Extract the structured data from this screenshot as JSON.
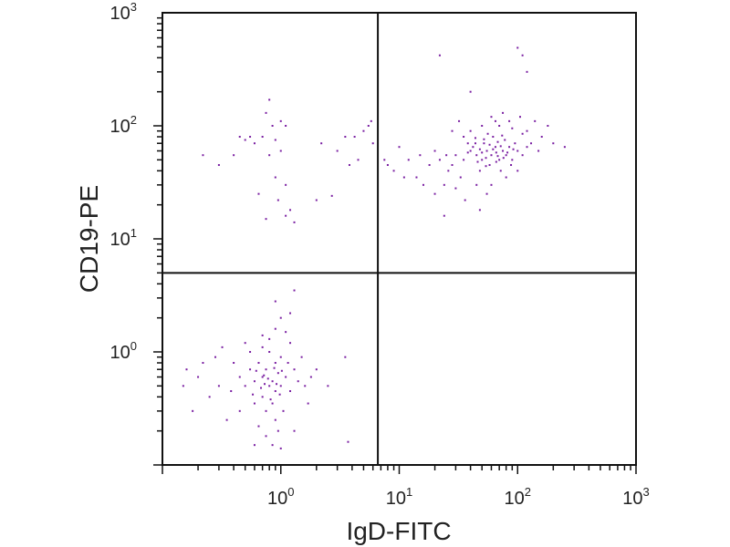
{
  "chart_data": {
    "type": "scatter",
    "title": "",
    "xlabel": "IgD-FITC",
    "ylabel": "CD19-PE",
    "x_scale": "log",
    "y_scale": "log",
    "xlim": [
      0.1,
      1000
    ],
    "ylim": [
      0.1,
      1000
    ],
    "x_ticks": [
      {
        "value": 1,
        "base": "10",
        "exp": "0"
      },
      {
        "value": 10,
        "base": "10",
        "exp": "1"
      },
      {
        "value": 100,
        "base": "10",
        "exp": "2"
      },
      {
        "value": 1000,
        "base": "10",
        "exp": "3"
      }
    ],
    "y_ticks": [
      {
        "value": 1,
        "base": "10",
        "exp": "0"
      },
      {
        "value": 10,
        "base": "10",
        "exp": "1"
      },
      {
        "value": 100,
        "base": "10",
        "exp": "2"
      },
      {
        "value": 1000,
        "base": "10",
        "exp": "3"
      }
    ],
    "quadrant_gate": {
      "x": 6.6,
      "y": 5.0
    },
    "grid": false,
    "legend": "none",
    "point_color": "#7a1fa2",
    "line_color": "#111111",
    "series": [
      {
        "points": [
          [
            0.85,
            0.55
          ],
          [
            0.7,
            0.6
          ],
          [
            0.9,
            0.45
          ],
          [
            0.75,
            0.7
          ],
          [
            0.8,
            0.5
          ],
          [
            0.95,
            0.65
          ],
          [
            0.6,
            0.55
          ],
          [
            1.0,
            0.5
          ],
          [
            0.65,
            0.8
          ],
          [
            0.9,
            0.8
          ],
          [
            0.7,
            0.4
          ],
          [
            0.85,
            0.35
          ],
          [
            1.1,
            0.6
          ],
          [
            0.55,
            0.7
          ],
          [
            0.75,
            0.3
          ],
          [
            1.0,
            0.9
          ],
          [
            0.8,
            1.0
          ],
          [
            0.5,
            0.5
          ],
          [
            1.2,
            0.45
          ],
          [
            0.6,
            0.35
          ],
          [
            0.9,
            0.25
          ],
          [
            1.3,
            0.7
          ],
          [
            0.45,
            0.6
          ],
          [
            0.7,
            1.1
          ],
          [
            1.05,
            0.3
          ],
          [
            0.95,
            0.2
          ],
          [
            0.4,
            0.8
          ],
          [
            1.4,
            0.55
          ],
          [
            0.3,
            0.5
          ],
          [
            0.8,
            1.3
          ],
          [
            1.6,
            0.5
          ],
          [
            0.65,
            0.22
          ],
          [
            0.2,
            0.6
          ],
          [
            0.25,
            0.4
          ],
          [
            0.15,
            0.5
          ],
          [
            0.18,
            0.3
          ],
          [
            0.22,
            0.8
          ],
          [
            0.35,
            0.25
          ],
          [
            1.5,
            0.9
          ],
          [
            1.8,
            0.6
          ],
          [
            1.2,
            1.2
          ],
          [
            0.55,
            1.0
          ],
          [
            0.85,
            0.15
          ],
          [
            1.0,
            0.14
          ],
          [
            0.75,
            0.18
          ],
          [
            1.3,
            0.2
          ],
          [
            0.6,
            0.15
          ],
          [
            2.0,
            0.7
          ],
          [
            0.28,
            0.9
          ],
          [
            0.16,
            0.7
          ],
          [
            0.9,
            1.6
          ],
          [
            1.1,
            1.5
          ],
          [
            0.7,
            1.4
          ],
          [
            1.2,
            2.2
          ],
          [
            0.5,
            1.2
          ],
          [
            0.32,
            1.1
          ],
          [
            2.5,
            0.5
          ],
          [
            1.7,
            0.35
          ],
          [
            0.45,
            0.3
          ],
          [
            0.38,
            0.45
          ],
          [
            1.15,
            0.8
          ],
          [
            0.72,
            0.62
          ],
          [
            0.88,
            0.72
          ],
          [
            0.98,
            0.42
          ],
          [
            0.68,
            0.48
          ],
          [
            0.78,
            0.58
          ],
          [
            0.82,
            0.38
          ],
          [
            0.92,
            0.52
          ],
          [
            1.02,
            0.68
          ],
          [
            0.62,
            0.68
          ],
          [
            0.58,
            0.42
          ],
          [
            0.73,
            0.52
          ],
          [
            1.3,
            3.5
          ],
          [
            1.0,
            2.0
          ],
          [
            3.7,
            0.16
          ],
          [
            3.5,
            0.9
          ],
          [
            0.9,
            2.8
          ]
        ]
      },
      {
        "points": [
          [
            0.8,
            170
          ],
          [
            0.75,
            130
          ],
          [
            0.85,
            100
          ],
          [
            1.0,
            110
          ],
          [
            1.1,
            100
          ],
          [
            0.9,
            75
          ],
          [
            0.7,
            80
          ],
          [
            0.55,
            80
          ],
          [
            0.5,
            75
          ],
          [
            0.45,
            80
          ],
          [
            0.6,
            70
          ],
          [
            1.0,
            60
          ],
          [
            0.8,
            55
          ],
          [
            0.4,
            55
          ],
          [
            0.3,
            45
          ],
          [
            0.22,
            55
          ],
          [
            0.9,
            35
          ],
          [
            1.1,
            30
          ],
          [
            1.2,
            18
          ],
          [
            0.75,
            15
          ],
          [
            1.3,
            14
          ],
          [
            1.1,
            16
          ],
          [
            0.95,
            22
          ],
          [
            0.65,
            25
          ],
          [
            2.0,
            22
          ],
          [
            2.7,
            24
          ],
          [
            3.5,
            80
          ],
          [
            4.2,
            80
          ],
          [
            5.0,
            90
          ],
          [
            5.5,
            100
          ],
          [
            3.0,
            60
          ],
          [
            2.2,
            70
          ],
          [
            6.0,
            70
          ],
          [
            3.8,
            45
          ],
          [
            4.5,
            50
          ],
          [
            5.8,
            110
          ]
        ]
      },
      {
        "points": [
          [
            60,
            55
          ],
          [
            55,
            60
          ],
          [
            70,
            50
          ],
          [
            50,
            50
          ],
          [
            65,
            65
          ],
          [
            45,
            55
          ],
          [
            75,
            60
          ],
          [
            40,
            60
          ],
          [
            80,
            55
          ],
          [
            58,
            45
          ],
          [
            52,
            70
          ],
          [
            68,
            72
          ],
          [
            85,
            65
          ],
          [
            35,
            50
          ],
          [
            90,
            50
          ],
          [
            48,
            40
          ],
          [
            62,
            80
          ],
          [
            100,
            60
          ],
          [
            30,
            55
          ],
          [
            95,
            70
          ],
          [
            110,
            55
          ],
          [
            42,
            65
          ],
          [
            72,
            40
          ],
          [
            56,
            85
          ],
          [
            78,
            75
          ],
          [
            66,
            58
          ],
          [
            54,
            52
          ],
          [
            46,
            48
          ],
          [
            88,
            45
          ],
          [
            38,
            70
          ],
          [
            120,
            65
          ],
          [
            130,
            70
          ],
          [
            150,
            60
          ],
          [
            28,
            45
          ],
          [
            25,
            55
          ],
          [
            22,
            50
          ],
          [
            20,
            60
          ],
          [
            18,
            45
          ],
          [
            15,
            55
          ],
          [
            12,
            50
          ],
          [
            10,
            65
          ],
          [
            8,
            45
          ],
          [
            7.5,
            50
          ],
          [
            9,
            40
          ],
          [
            11,
            35
          ],
          [
            14,
            35
          ],
          [
            16,
            30
          ],
          [
            20,
            25
          ],
          [
            24,
            30
          ],
          [
            26,
            40
          ],
          [
            33,
            35
          ],
          [
            60,
            30
          ],
          [
            80,
            35
          ],
          [
            45,
            30
          ],
          [
            55,
            25
          ],
          [
            100,
            40
          ],
          [
            110,
            85
          ],
          [
            90,
            95
          ],
          [
            70,
            100
          ],
          [
            50,
            100
          ],
          [
            65,
            110
          ],
          [
            75,
            130
          ],
          [
            40,
            90
          ],
          [
            35,
            80
          ],
          [
            120,
            90
          ],
          [
            160,
            80
          ],
          [
            180,
            100
          ],
          [
            200,
            70
          ],
          [
            250,
            65
          ],
          [
            140,
            110
          ],
          [
            105,
            120
          ],
          [
            85,
            110
          ],
          [
            30,
            28
          ],
          [
            24,
            16
          ],
          [
            36,
            22
          ],
          [
            48,
            18
          ],
          [
            40,
            200
          ],
          [
            22,
            420
          ],
          [
            100,
            490
          ],
          [
            110,
            420
          ],
          [
            120,
            300
          ],
          [
            60,
            120
          ],
          [
            32,
            110
          ],
          [
            28,
            90
          ],
          [
            44,
            78
          ],
          [
            58,
            68
          ],
          [
            62,
            62
          ],
          [
            50,
            58
          ],
          [
            72,
            66
          ],
          [
            66,
            48
          ],
          [
            48,
            62
          ],
          [
            54,
            44
          ],
          [
            76,
            52
          ],
          [
            44,
            70
          ],
          [
            82,
            58
          ],
          [
            92,
            62
          ],
          [
            38,
            58
          ],
          [
            68,
            54
          ],
          [
            52,
            76
          ],
          [
            74,
            82
          ]
        ]
      }
    ]
  }
}
